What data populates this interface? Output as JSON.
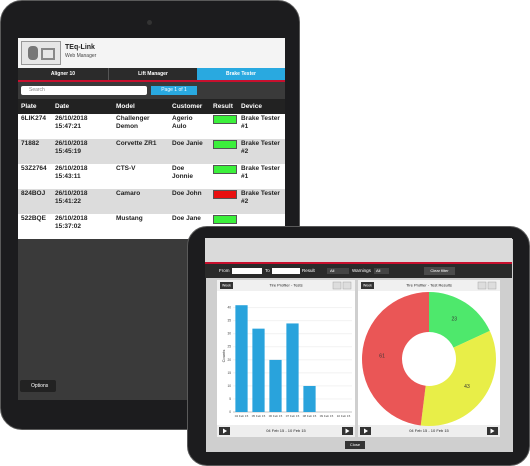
{
  "header": {
    "title": "TEq-Link",
    "subtitle": "Web Manager"
  },
  "tabs": [
    "Aligner 10",
    "Lift Manager",
    "Brake Tester"
  ],
  "search_placeholder": "Search",
  "pagination": "Page 1 of 1",
  "table": {
    "headers": [
      "Plate",
      "Date",
      "Model",
      "Customer",
      "Result",
      "Device"
    ],
    "rows": [
      [
        "6LIK274",
        "26/10/2018 15:47:21",
        "Challenger Demon",
        "Agerio Aulo",
        "Brake Tester #1"
      ],
      [
        "71882",
        "26/10/2018 15:45:19",
        "Corvette ZR1",
        "Doe Janie",
        "Brake Tester #2"
      ],
      [
        "53Z2764",
        "26/10/2018 15:43:11",
        "CTS-V",
        "Doe Jonnie",
        "Brake Tester #1"
      ],
      [
        "824BOJ",
        "26/10/2018 15:41:22",
        "Camaro",
        "Doe John",
        "Brake Tester #2"
      ],
      [
        "522BQE",
        "26/10/2018 15:37:02",
        "Mustang",
        "Doe Jane",
        ""
      ]
    ],
    "result_colors": [
      "#3cf03c",
      "#3cf03c",
      "#3cf03c",
      "#e81010",
      "#3cf03c"
    ]
  },
  "options_button": "Options",
  "filters": {
    "from": "From",
    "to": "To",
    "result": "Result",
    "result_value": "All",
    "warnings": "Warnings",
    "warnings_value": "All",
    "clear": "Clear filter"
  },
  "chart_data": [
    {
      "type": "bar",
      "title": "Tire Profiler - Tests",
      "period_button": "Week",
      "y_label": "Counts",
      "categories": [
        "04 Feb 15",
        "05 Feb 15",
        "06 Feb 15",
        "07 Feb 15",
        "08 Feb 15",
        "09 Feb 15",
        "10 Feb 15"
      ],
      "values": [
        41,
        32,
        20,
        34,
        10,
        0,
        0
      ],
      "color": "#29a3dc",
      "ylim": [
        0,
        43
      ],
      "yticks": [
        0,
        5,
        10,
        15,
        20,
        25,
        30,
        35,
        40
      ],
      "grid": true,
      "footer": "04 Feb 15 - 10 Feb 15"
    },
    {
      "type": "pie",
      "title": "Tire Profiler - Test Results",
      "period_button": "Week",
      "values": [
        23,
        43,
        61
      ],
      "colors": [
        "#4ee86c",
        "#e8ee48",
        "#ea5656"
      ],
      "footer": "04 Feb 15 - 10 Feb 15"
    }
  ],
  "close_button": "Close"
}
